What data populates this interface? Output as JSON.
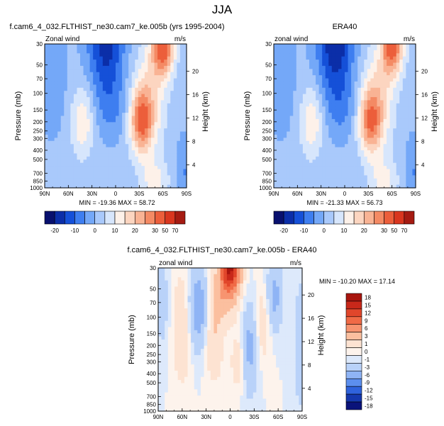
{
  "page_title": "JJA",
  "chart_data": [
    {
      "type": "heatmap",
      "title": "f.cam6_4_032.FLTHIST_ne30.cam7_ke.005b (yrs 1995-2004)",
      "left_label": "Zonal wind",
      "units": "m/s",
      "ylabel": "Pressure (mb)",
      "y2label": "Height (km)",
      "xticks": [
        "90N",
        "60N",
        "30N",
        "0",
        "30S",
        "60S",
        "90S"
      ],
      "yticks": [
        "30",
        "50",
        "70",
        "100",
        "150",
        "200",
        "250",
        "300",
        "400",
        "500",
        "700",
        "850",
        "1000"
      ],
      "y2ticks": [
        "20",
        "16",
        "12",
        "8",
        "4"
      ],
      "stats": "MIN = -19.36   MAX =  58.72",
      "colorbar_labels": [
        "-20",
        "-10",
        "0",
        "10",
        "20",
        "30",
        "50",
        "70"
      ],
      "field": "jet_model"
    },
    {
      "type": "heatmap",
      "title": "ERA40",
      "left_label": "zonal wind",
      "units": "m/s",
      "ylabel": "Pressure (mb)",
      "y2label": "Height (km)",
      "xticks": [
        "90N",
        "60N",
        "30N",
        "0",
        "30S",
        "60S",
        "90S"
      ],
      "yticks": [
        "30",
        "50",
        "70",
        "100",
        "150",
        "200",
        "250",
        "300",
        "400",
        "500",
        "700",
        "850",
        "1000"
      ],
      "y2ticks": [
        "20",
        "16",
        "12",
        "8",
        "4"
      ],
      "stats": "MIN = -21.33   MAX =  56.73",
      "colorbar_labels": [
        "-20",
        "-10",
        "0",
        "10",
        "20",
        "30",
        "50",
        "70"
      ],
      "field": "jet_obs"
    },
    {
      "type": "heatmap",
      "title": "f.cam6_4_032.FLTHIST_ne30.cam7_ke.005b - ERA40",
      "left_label": "zonal wind",
      "units": "m/s",
      "ylabel": "Pressure (mb)",
      "y2label": "Height (km)",
      "xticks": [
        "90N",
        "60N",
        "30N",
        "0",
        "30S",
        "60S",
        "90S"
      ],
      "yticks": [
        "30",
        "50",
        "70",
        "100",
        "150",
        "200",
        "250",
        "300",
        "400",
        "500",
        "700",
        "850",
        "1000"
      ],
      "y2ticks": [
        "20",
        "16",
        "12",
        "8",
        "4"
      ],
      "stats": "MIN = -10.20   MAX =  17.14",
      "colorbar_labels": [
        "18",
        "15",
        "12",
        "9",
        "6",
        "3",
        "1",
        "0",
        "-1",
        "-3",
        "-6",
        "-9",
        "-12",
        "-15",
        "-18"
      ],
      "field": "diff"
    }
  ],
  "colors": {
    "abs_scale": [
      "#08106e",
      "#0b2ea8",
      "#1550d8",
      "#3e7ef0",
      "#74a8f8",
      "#a9c9fb",
      "#d7e6fc",
      "#fdf1e9",
      "#fcd5c0",
      "#f9b394",
      "#f48a64",
      "#ec5e3b",
      "#d9361f",
      "#a51b12"
    ],
    "diff_scale": [
      "#a8150e",
      "#c8281a",
      "#e1462b",
      "#f06a46",
      "#f79470",
      "#fbbf9f",
      "#fde3d2",
      "#fdf3ec",
      "#dde9fb",
      "#b9d2f9",
      "#8fb4f5",
      "#5c8fee",
      "#2f63dc",
      "#1538ad",
      "#0a137a"
    ]
  }
}
